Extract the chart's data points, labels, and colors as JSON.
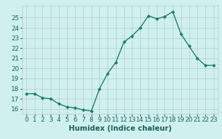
{
  "x": [
    0,
    1,
    2,
    3,
    4,
    5,
    6,
    7,
    8,
    9,
    10,
    11,
    12,
    13,
    14,
    15,
    16,
    17,
    18,
    19,
    20,
    21,
    22,
    23
  ],
  "y": [
    17.5,
    17.5,
    17.1,
    17.0,
    16.5,
    16.2,
    16.1,
    15.9,
    15.8,
    18.0,
    19.5,
    20.6,
    22.6,
    23.2,
    24.0,
    25.2,
    24.9,
    25.1,
    25.6,
    23.4,
    22.2,
    21.0,
    20.3,
    20.3
  ],
  "xlabel": "Humidex (Indice chaleur)",
  "ylim": [
    15.5,
    26.2
  ],
  "xlim": [
    -0.5,
    23.5
  ],
  "yticks": [
    16,
    17,
    18,
    19,
    20,
    21,
    22,
    23,
    24,
    25
  ],
  "xticks": [
    0,
    1,
    2,
    3,
    4,
    5,
    6,
    7,
    8,
    9,
    10,
    11,
    12,
    13,
    14,
    15,
    16,
    17,
    18,
    19,
    20,
    21,
    22,
    23
  ],
  "line_color": "#1a7a6e",
  "marker_color": "#1a7a6e",
  "bg_color": "#cff0ee",
  "grid_color": "#b8d0cc",
  "text_color": "#1a5f5a",
  "tick_label_fontsize": 6.5,
  "xlabel_fontsize": 7.5
}
